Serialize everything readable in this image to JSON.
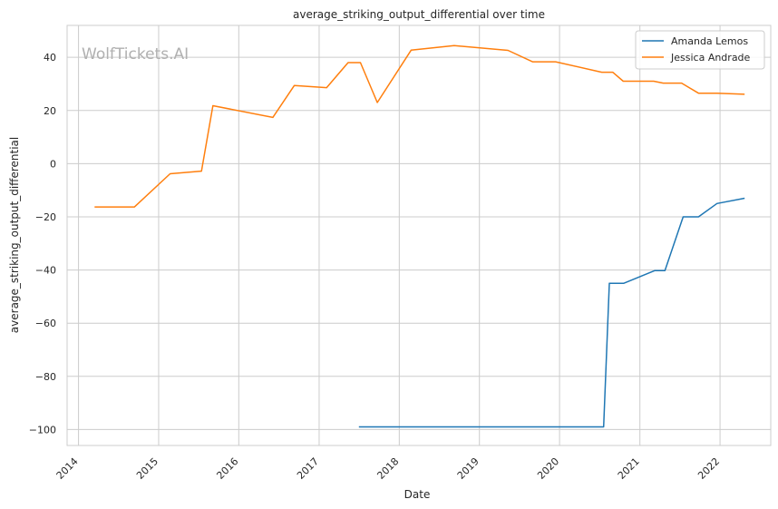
{
  "chart_data": {
    "type": "line",
    "title": "average_striking_output_differential over time",
    "xlabel": "Date",
    "ylabel": "average_striking_output_differential",
    "watermark": "WolfTickets.AI",
    "x_ticks": [
      "2014",
      "2015",
      "2016",
      "2017",
      "2018",
      "2019",
      "2020",
      "2021",
      "2022"
    ],
    "y_ticks": [
      40,
      20,
      0,
      -20,
      -40,
      -60,
      -80,
      -100
    ],
    "xlim": [
      "2013-11-10",
      "2022-08-20"
    ],
    "ylim": [
      -106,
      52
    ],
    "grid": true,
    "legend_position": "top-right",
    "series": [
      {
        "name": "Amanda Lemos",
        "color": "#1f77b4",
        "points": [
          [
            "2017-07-01",
            -99
          ],
          [
            "2020-07-20",
            -99
          ],
          [
            "2020-08-15",
            -45
          ],
          [
            "2020-10-20",
            -45
          ],
          [
            "2021-03-10",
            -40.2
          ],
          [
            "2021-04-25",
            -40.2
          ],
          [
            "2021-07-17",
            -20
          ],
          [
            "2021-09-25",
            -20
          ],
          [
            "2021-12-18",
            -15
          ],
          [
            "2022-04-23",
            -13
          ]
        ]
      },
      {
        "name": "Jessica Andrade",
        "color": "#ff7f0e",
        "points": [
          [
            "2014-03-15",
            -16.3
          ],
          [
            "2014-09-13",
            -16.3
          ],
          [
            "2015-02-22",
            -3.8
          ],
          [
            "2015-07-15",
            -2.8
          ],
          [
            "2015-09-05",
            21.8
          ],
          [
            "2016-06-04",
            17.4
          ],
          [
            "2016-09-10",
            29.4
          ],
          [
            "2017-02-04",
            28.6
          ],
          [
            "2017-05-13",
            38.0
          ],
          [
            "2017-07-08",
            38.0
          ],
          [
            "2017-09-23",
            23.0
          ],
          [
            "2018-02-24",
            42.7
          ],
          [
            "2018-09-08",
            44.4
          ],
          [
            "2019-05-11",
            42.6
          ],
          [
            "2019-08-31",
            38.3
          ],
          [
            "2019-12-14",
            38.3
          ],
          [
            "2020-07-11",
            34.4
          ],
          [
            "2020-08-30",
            34.4
          ],
          [
            "2020-10-17",
            31.0
          ],
          [
            "2021-03-05",
            31.0
          ],
          [
            "2021-04-17",
            30.3
          ],
          [
            "2021-07-10",
            30.3
          ],
          [
            "2021-09-25",
            26.5
          ],
          [
            "2021-12-18",
            26.5
          ],
          [
            "2022-04-23",
            26.1
          ]
        ]
      }
    ]
  }
}
